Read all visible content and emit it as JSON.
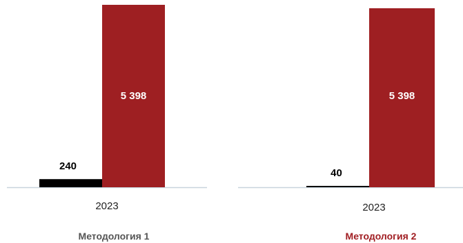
{
  "chart_data": [
    {
      "type": "bar",
      "title": "Методология 1",
      "title_color": "#555555",
      "categories": [
        "2023"
      ],
      "series": [
        {
          "color": "#000000",
          "values": [
            240
          ],
          "labels": [
            "240"
          ]
        },
        {
          "color": "#9e1f22",
          "values": [
            5398
          ],
          "labels": [
            "5 398"
          ]
        }
      ],
      "ylim": [
        0,
        5500
      ],
      "grid": false
    },
    {
      "type": "bar",
      "title": "Методология 2",
      "title_color": "#a01d22",
      "categories": [
        "2023"
      ],
      "series": [
        {
          "color": "#000000",
          "values": [
            40
          ],
          "labels": [
            "40"
          ]
        },
        {
          "color": "#9e1f22",
          "values": [
            5398
          ],
          "labels": [
            "5 398"
          ]
        }
      ],
      "ylim": [
        0,
        5500
      ],
      "grid": false
    }
  ]
}
